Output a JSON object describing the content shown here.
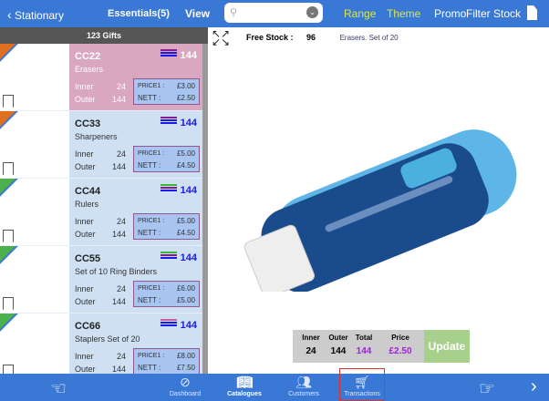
{
  "topbar": {
    "back_label": "Stationary",
    "collection": "Essentials(5)",
    "view": "View",
    "search_placeholder": "",
    "range": "Range",
    "theme": "Theme",
    "promo": "Promo",
    "filter": "Filter",
    "stock": "Stock"
  },
  "list": {
    "header": "123 Gifts",
    "items": [
      {
        "code": "CC22",
        "name": "Erasers",
        "count": "144",
        "inner_label": "Inner",
        "inner": "24",
        "outer_label": "Outer",
        "outer": "144",
        "price1_label": "PRICE1 :",
        "price1": "£3.00",
        "nett_label": "NETT :",
        "nett": "£2.50",
        "selected": true,
        "stripes": [
          "#8b1a8b",
          "#1a1ae6",
          "#1a1ae6"
        ],
        "corner": "#e07020"
      },
      {
        "code": "CC33",
        "name": "Sharpeners",
        "count": "144",
        "inner_label": "Inner",
        "inner": "24",
        "outer_label": "Outer",
        "outer": "144",
        "price1_label": "PRICE1 :",
        "price1": "£5.00",
        "nett_label": "NETT :",
        "nett": "£4.50",
        "selected": false,
        "stripes": [
          "#8b1a8b",
          "#1a1ae6",
          "#1a1ae6"
        ],
        "corner": "#e07020"
      },
      {
        "code": "CC44",
        "name": "Rulers",
        "count": "144",
        "inner_label": "Inner",
        "inner": "24",
        "outer_label": "Outer",
        "outer": "144",
        "price1_label": "PRICE1 :",
        "price1": "£5.00",
        "nett_label": "NETT :",
        "nett": "£4.50",
        "selected": false,
        "stripes": [
          "#3cb83c",
          "#8b1a8b",
          "#1a1ae6"
        ],
        "corner": "#4cb04c"
      },
      {
        "code": "CC55",
        "name": "Set of 10 Ring Binders",
        "count": "144",
        "inner_label": "Inner",
        "inner": "24",
        "outer_label": "Outer",
        "outer": "144",
        "price1_label": "PRICE1 :",
        "price1": "£6.00",
        "nett_label": "NETT :",
        "nett": "£5.00",
        "selected": false,
        "stripes": [
          "#3cb83c",
          "#8b1a8b",
          "#1a1ae6"
        ],
        "corner": "#4cb04c"
      },
      {
        "code": "CC66",
        "name": "Staplers  Set of 20",
        "count": "144",
        "inner_label": "Inner",
        "inner": "24",
        "outer_label": "Outer",
        "outer": "144",
        "price1_label": "PRICE1 :",
        "price1": "£8.00",
        "nett_label": "NETT :",
        "nett": "£7.50",
        "selected": false,
        "stripes": [
          "#d0609a",
          "#1a1ae6",
          "#1a1ae6"
        ],
        "corner": "#4cb04c"
      }
    ]
  },
  "detail": {
    "free_stock_label": "Free Stock :",
    "free_stock": "96",
    "description": "Erasers. Set of 20"
  },
  "summary": {
    "inner_label": "Inner",
    "inner": "24",
    "outer_label": "Outer",
    "outer": "144",
    "total_label": "Total",
    "total": "144",
    "price_label": "Price",
    "price": "£2.50",
    "update": "Update"
  },
  "bottombar": {
    "tabs": [
      {
        "label": "Dashboard"
      },
      {
        "label": "Catalogues"
      },
      {
        "label": "Customers"
      },
      {
        "label": "Transactions",
        "highlighted": true
      }
    ]
  }
}
